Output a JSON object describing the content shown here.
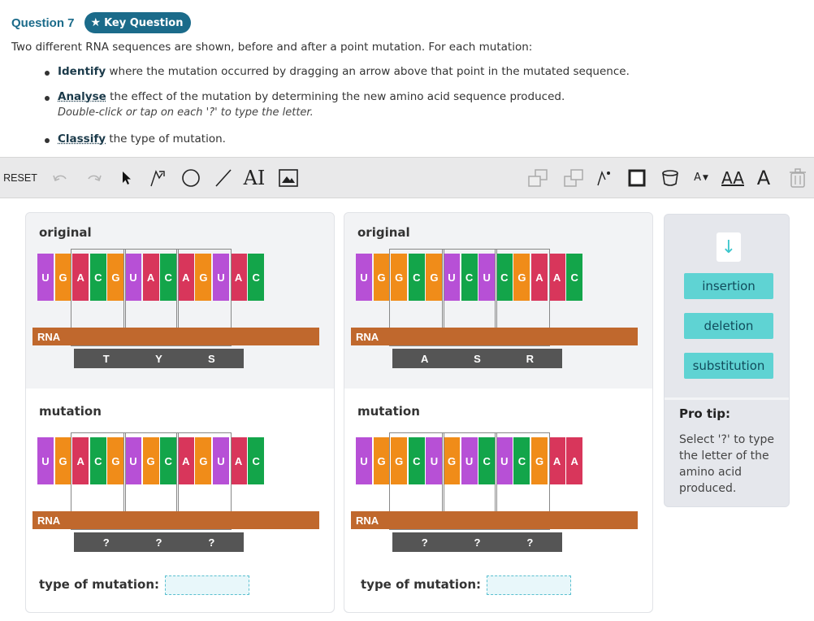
{
  "question": {
    "number": "Question 7",
    "badge": "Key Question"
  },
  "intro": "Two different RNA sequences are shown, before and after a point mutation. For each mutation:",
  "bullets": [
    {
      "bold": "Identify",
      "rest": " where the mutation occurred by dragging an arrow above that point in the mutated sequence."
    },
    {
      "bold": "Analyse",
      "rest": " the effect of the mutation by determining the new amino acid sequence produced.",
      "sub": "Double-click or tap on each '?' to type the letter."
    },
    {
      "bold": "Classify",
      "rest": " the type of mutation."
    }
  ],
  "toolbar": {
    "reset": "RESET",
    "text_tool": "AI",
    "font_small": "A",
    "font_big": "A",
    "font_aa": "AA"
  },
  "colors": {
    "A": "#d8365b",
    "C": "#13a54a",
    "G": "#f08c19",
    "U": "#b750d6",
    "rna_bar": "#c0682d",
    "aa_box": "#555555",
    "accent": "#1b6b8a",
    "chip": "#5fd3d3"
  },
  "panels": [
    {
      "original_label": "original",
      "original_seq": [
        "U",
        "G",
        "A",
        "C",
        "G",
        "U",
        "A",
        "C",
        "A",
        "G",
        "U",
        "A",
        "C"
      ],
      "original_aa": [
        "T",
        "Y",
        "S"
      ],
      "mutation_label": "mutation",
      "mutation_seq": [
        "U",
        "G",
        "A",
        "C",
        "G",
        "U",
        "G",
        "C",
        "A",
        "G",
        "U",
        "A",
        "C"
      ],
      "mutation_aa": [
        "?",
        "?",
        "?"
      ],
      "rna_label": "RNA",
      "type_label": "type of mutation:"
    },
    {
      "original_label": "original",
      "original_seq": [
        "U",
        "G",
        "G",
        "C",
        "G",
        "U",
        "C",
        "U",
        "C",
        "G",
        "A",
        "A",
        "C"
      ],
      "original_aa": [
        "A",
        "S",
        "R"
      ],
      "mutation_label": "mutation",
      "mutation_seq": [
        "U",
        "G",
        "G",
        "C",
        "U",
        "G",
        "U",
        "C",
        "U",
        "C",
        "G",
        "A",
        "A"
      ],
      "mutation_aa": [
        "?",
        "?",
        "?"
      ],
      "rna_label": "RNA",
      "type_label": "type of mutation:"
    }
  ],
  "side": {
    "chips": [
      "insertion",
      "deletion",
      "substitution"
    ],
    "tip_title": "Pro tip:",
    "tip_text": "Select '?' to type the letter of the amino acid produced."
  }
}
